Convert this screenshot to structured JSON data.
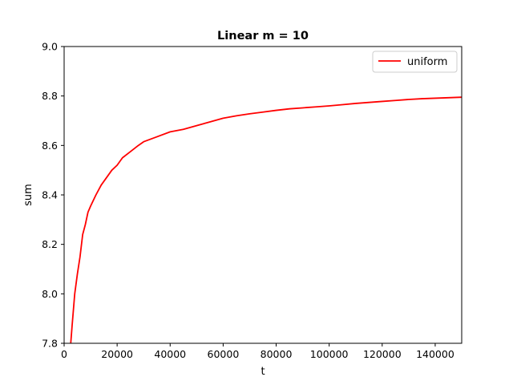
{
  "chart_data": {
    "type": "line",
    "title": "Linear m = 10",
    "xlabel": "t",
    "ylabel": "sum",
    "xlim": [
      0,
      150000
    ],
    "ylim": [
      7.8,
      9.0
    ],
    "xticks": [
      0,
      20000,
      40000,
      60000,
      80000,
      100000,
      120000,
      140000
    ],
    "yticks": [
      7.8,
      8.0,
      8.2,
      8.4,
      8.6,
      8.8,
      9.0
    ],
    "xtick_labels": [
      "0",
      "20000",
      "40000",
      "60000",
      "80000",
      "100000",
      "120000",
      "140000"
    ],
    "ytick_labels": [
      "7.8",
      "8.0",
      "8.2",
      "8.4",
      "8.6",
      "8.8",
      "9.0"
    ],
    "grid": false,
    "legend_position": "top-right",
    "series": [
      {
        "name": "uniform",
        "color": "#ff0000",
        "x": [
          2500,
          3000,
          4000,
          5000,
          6000,
          7000,
          8000,
          9000,
          10000,
          12000,
          14000,
          16000,
          18000,
          20000,
          22000,
          25000,
          28000,
          30000,
          35000,
          40000,
          45000,
          50000,
          55000,
          60000,
          65000,
          70000,
          75000,
          80000,
          85000,
          90000,
          95000,
          100000,
          105000,
          110000,
          115000,
          120000,
          125000,
          130000,
          135000,
          140000,
          145000,
          150000
        ],
        "y": [
          7.8,
          7.87,
          8.0,
          8.08,
          8.15,
          8.24,
          8.28,
          8.33,
          8.355,
          8.4,
          8.44,
          8.47,
          8.5,
          8.52,
          8.55,
          8.575,
          8.6,
          8.615,
          8.635,
          8.655,
          8.665,
          8.68,
          8.695,
          8.71,
          8.72,
          8.728,
          8.735,
          8.742,
          8.748,
          8.752,
          8.756,
          8.76,
          8.765,
          8.77,
          8.774,
          8.778,
          8.782,
          8.786,
          8.789,
          8.791,
          8.793,
          8.795
        ]
      }
    ]
  }
}
